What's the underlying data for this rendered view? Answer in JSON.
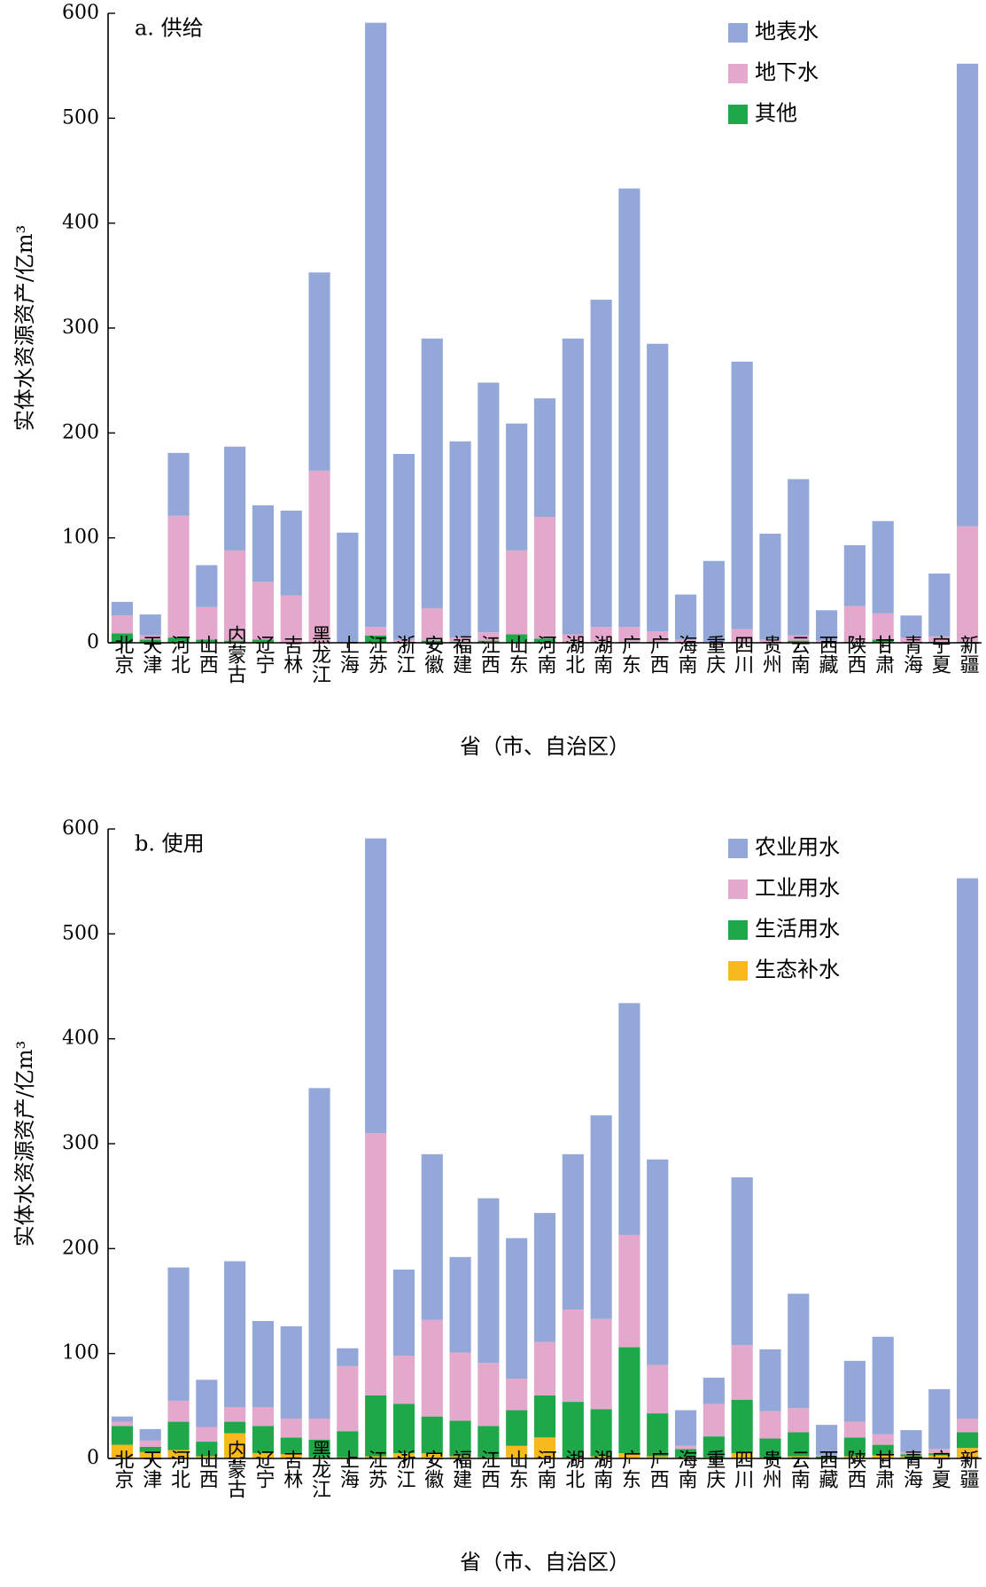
{
  "chart_data": [
    {
      "type": "bar",
      "stacked": true,
      "title": "a. 供给",
      "xlabel": "省（市、自治区）",
      "ylabel": "实体水资源资产/亿m³",
      "ylim": [
        0,
        600
      ],
      "yticks": [
        0,
        100,
        200,
        300,
        400,
        500,
        600
      ],
      "legend_position": "top-right",
      "categories": [
        "北京",
        "天津",
        "河北",
        "山西",
        "内蒙古",
        "辽宁",
        "吉林",
        "黑龙江",
        "上海",
        "江苏",
        "浙江",
        "安徽",
        "福建",
        "江西",
        "山东",
        "河南",
        "湖北",
        "湖南",
        "广东",
        "广西",
        "海南",
        "重庆",
        "四川",
        "贵州",
        "云南",
        "西藏",
        "陕西",
        "甘肃",
        "青海",
        "宁夏",
        "新疆"
      ],
      "series": [
        {
          "name": "其他",
          "color": "#1ea84a",
          "values": [
            9,
            3,
            5,
            3,
            2,
            3,
            0,
            0,
            0,
            7,
            1,
            2,
            1,
            2,
            8,
            4,
            1,
            1,
            1,
            1,
            0,
            0,
            1,
            0,
            2,
            0,
            1,
            3,
            0,
            1,
            1
          ]
        },
        {
          "name": "地下水",
          "color": "#e3a8cc",
          "values": [
            17,
            4,
            116,
            31,
            86,
            55,
            45,
            164,
            0,
            8,
            2,
            31,
            4,
            8,
            80,
            116,
            7,
            14,
            14,
            10,
            3,
            1,
            12,
            3,
            5,
            2,
            34,
            25,
            5,
            5,
            110
          ]
        },
        {
          "name": "地表水",
          "color": "#93a8d8",
          "values": [
            13,
            20,
            60,
            40,
            99,
            73,
            81,
            189,
            105,
            576,
            177,
            257,
            187,
            238,
            121,
            113,
            282,
            312,
            418,
            274,
            43,
            77,
            255,
            101,
            149,
            29,
            58,
            88,
            21,
            60,
            441
          ]
        }
      ]
    },
    {
      "type": "bar",
      "stacked": true,
      "title": "b. 使用",
      "xlabel": "省（市、自治区）",
      "ylabel": "实体水资源资产/亿m³",
      "ylim": [
        0,
        600
      ],
      "yticks": [
        0,
        100,
        200,
        300,
        400,
        500,
        600
      ],
      "legend_position": "top-right",
      "categories": [
        "北京",
        "天津",
        "河北",
        "山西",
        "内蒙古",
        "辽宁",
        "吉林",
        "黑龙江",
        "上海",
        "江苏",
        "浙江",
        "安徽",
        "福建",
        "江西",
        "山东",
        "河南",
        "湖北",
        "湖南",
        "广东",
        "广西",
        "海南",
        "重庆",
        "四川",
        "贵州",
        "云南",
        "西藏",
        "陕西",
        "甘肃",
        "青海",
        "宁夏",
        "新疆"
      ],
      "series": [
        {
          "name": "生态补水",
          "color": "#f7b91c",
          "values": [
            13,
            6,
            8,
            2,
            24,
            5,
            4,
            1,
            1,
            2,
            5,
            5,
            2,
            1,
            12,
            20,
            1,
            2,
            5,
            2,
            1,
            1,
            5,
            1,
            2,
            0,
            2,
            3,
            2,
            3,
            10
          ]
        },
        {
          "name": "生活用水",
          "color": "#1ea84a",
          "values": [
            18,
            5,
            27,
            14,
            11,
            26,
            16,
            17,
            25,
            58,
            47,
            35,
            34,
            30,
            34,
            40,
            53,
            45,
            101,
            41,
            8,
            20,
            51,
            18,
            23,
            2,
            18,
            10,
            2,
            2,
            15
          ]
        },
        {
          "name": "工业用水",
          "color": "#e3a8cc",
          "values": [
            4,
            6,
            20,
            14,
            14,
            18,
            18,
            20,
            62,
            250,
            46,
            92,
            65,
            60,
            30,
            51,
            88,
            86,
            107,
            46,
            3,
            31,
            52,
            26,
            23,
            1,
            15,
            10,
            2,
            4,
            13
          ]
        },
        {
          "name": "农业用水",
          "color": "#93a8d8",
          "values": [
            5,
            11,
            127,
            45,
            139,
            82,
            88,
            315,
            17,
            281,
            82,
            158,
            91,
            157,
            134,
            123,
            148,
            194,
            221,
            196,
            34,
            25,
            160,
            59,
            109,
            29,
            58,
            93,
            21,
            57,
            515
          ]
        }
      ]
    }
  ]
}
